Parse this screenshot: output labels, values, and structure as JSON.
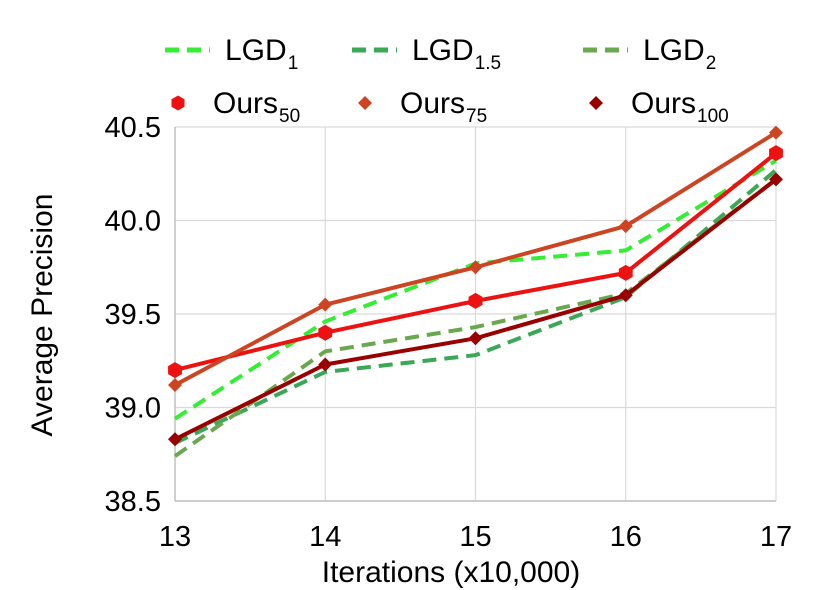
{
  "chart_data": {
    "type": "line",
    "title": "",
    "xlabel": "Iterations (x10,000)",
    "ylabel": "Average Precision",
    "x": [
      13,
      14,
      15,
      16,
      17
    ],
    "xticks": [
      "13",
      "14",
      "15",
      "16",
      "17"
    ],
    "ylim": [
      38.5,
      40.5
    ],
    "yticks": [
      "38.5",
      "39.0",
      "39.5",
      "40.0",
      "40.5"
    ],
    "ytick_values": [
      38.5,
      39.0,
      39.5,
      40.0,
      40.5
    ],
    "grid": true,
    "legend_position": "top",
    "series": [
      {
        "id": "lgd1",
        "name": "LGD",
        "sub": "1",
        "style": "dashed",
        "marker": "none",
        "color": "#33ee33",
        "values": [
          38.94,
          39.46,
          39.77,
          39.84,
          40.32
        ]
      },
      {
        "id": "lgd15",
        "name": "LGD",
        "sub": "1.5",
        "style": "dashed",
        "marker": "none",
        "color": "#3aa856",
        "values": [
          38.81,
          39.19,
          39.28,
          39.59,
          40.27
        ]
      },
      {
        "id": "lgd2",
        "name": "LGD",
        "sub": "2",
        "style": "dashed",
        "marker": "none",
        "color": "#6aa84f",
        "values": [
          38.74,
          39.3,
          39.43,
          39.61,
          40.22
        ]
      },
      {
        "id": "ours50",
        "name": "Ours",
        "sub": "50",
        "style": "solid",
        "marker": "hexagon",
        "color": "#ee1111",
        "values": [
          39.2,
          39.4,
          39.57,
          39.72,
          40.36
        ]
      },
      {
        "id": "ours75",
        "name": "Ours",
        "sub": "75",
        "style": "solid",
        "marker": "diamond",
        "color": "#cc4422",
        "values": [
          39.12,
          39.55,
          39.75,
          39.97,
          40.47
        ]
      },
      {
        "id": "ours100",
        "name": "Ours",
        "sub": "100",
        "style": "solid",
        "marker": "diamond",
        "color": "#990000",
        "values": [
          38.83,
          39.23,
          39.37,
          39.6,
          40.22
        ]
      }
    ]
  }
}
